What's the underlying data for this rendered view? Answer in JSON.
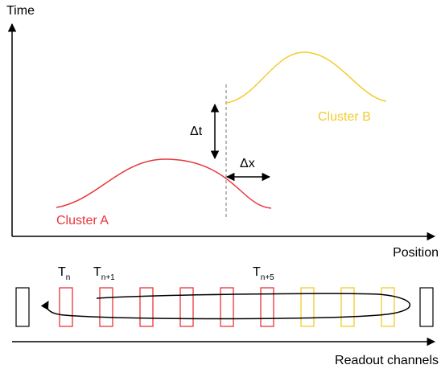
{
  "axes": {
    "y_label": "Time",
    "x_label": "Position",
    "channels_label": "Readout channels"
  },
  "clusters": {
    "a_label": "Cluster A",
    "b_label": "Cluster B",
    "a_color": "#e8353b",
    "b_color": "#f2cc2c"
  },
  "annotations": {
    "delta_t": "Δt",
    "delta_x": "Δx"
  },
  "channels": {
    "tn_base": "T",
    "tn_sub": "n",
    "tn1_base": "T",
    "tn1_sub": "n+1",
    "tn5_base": "T",
    "tn5_sub": "n+5",
    "sequence": [
      "black",
      "red",
      "red",
      "red",
      "red",
      "red",
      "red",
      "yellow",
      "yellow",
      "yellow",
      "black"
    ]
  },
  "colors": {
    "black": "#000000",
    "red": "#e8353b",
    "yellow": "#f2cc2c",
    "dashed": "#8a8a8a"
  }
}
